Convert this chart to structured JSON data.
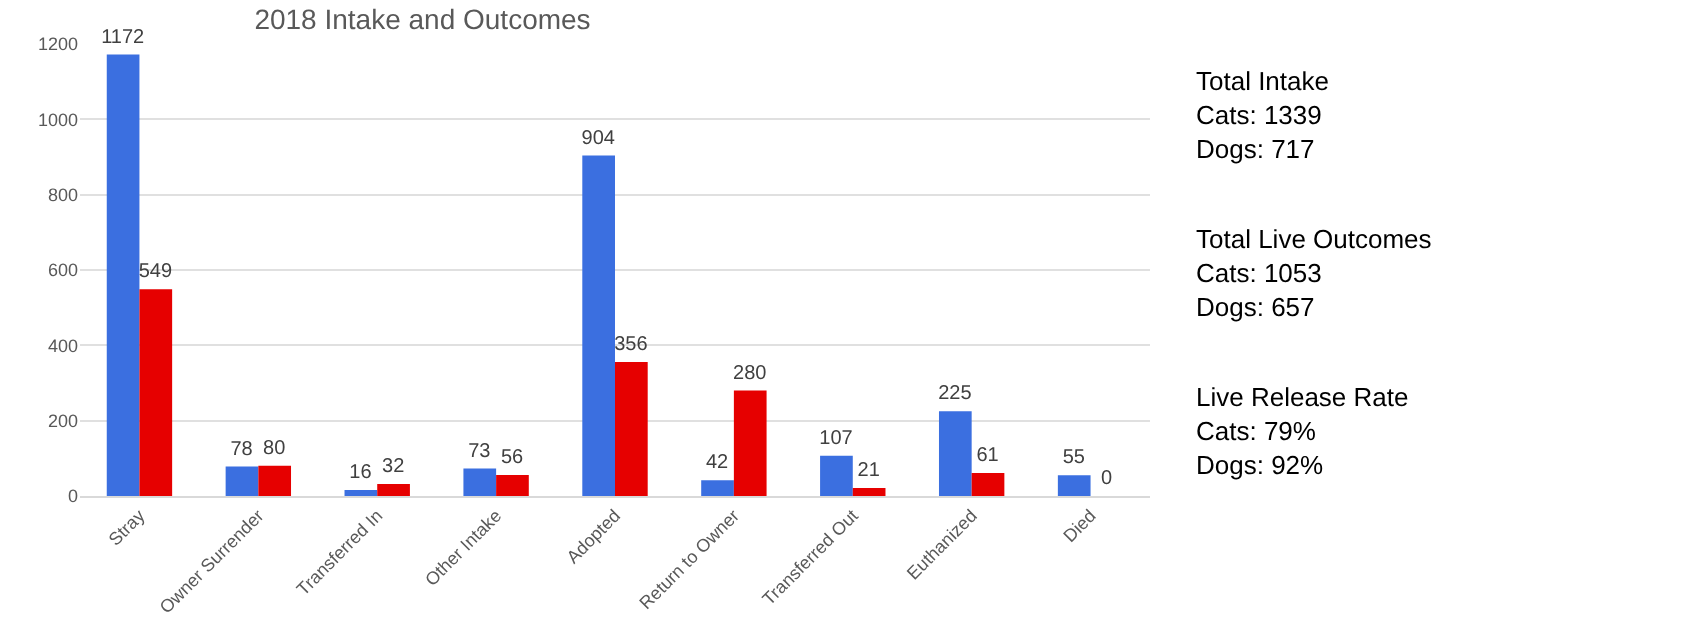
{
  "chart_data": {
    "type": "bar",
    "title": "2018 Intake and Outcomes",
    "categories": [
      "Stray",
      "Owner Surrender",
      "Transferred In",
      "Other Intake",
      "Adopted",
      "Return to Owner",
      "Transferred Out",
      "Euthanized",
      "Died"
    ],
    "series": [
      {
        "color": "#3b6fe0",
        "values": [
          1172,
          78,
          16,
          73,
          904,
          42,
          107,
          225,
          55
        ]
      },
      {
        "color": "#e60000",
        "values": [
          549,
          80,
          32,
          56,
          356,
          280,
          21,
          61,
          0
        ]
      }
    ],
    "ylim": [
      0,
      1200
    ],
    "yticks": [
      0,
      200,
      400,
      600,
      800,
      1000,
      1200
    ],
    "grid": "y",
    "data_labels": true,
    "annotations": [
      "Total Intake\nCats: 1339\nDogs: 717",
      "Total Live Outcomes\nCats: 1053\nDogs: 657",
      "Live Release Rate\nCats: 79%\nDogs: 92%"
    ]
  }
}
